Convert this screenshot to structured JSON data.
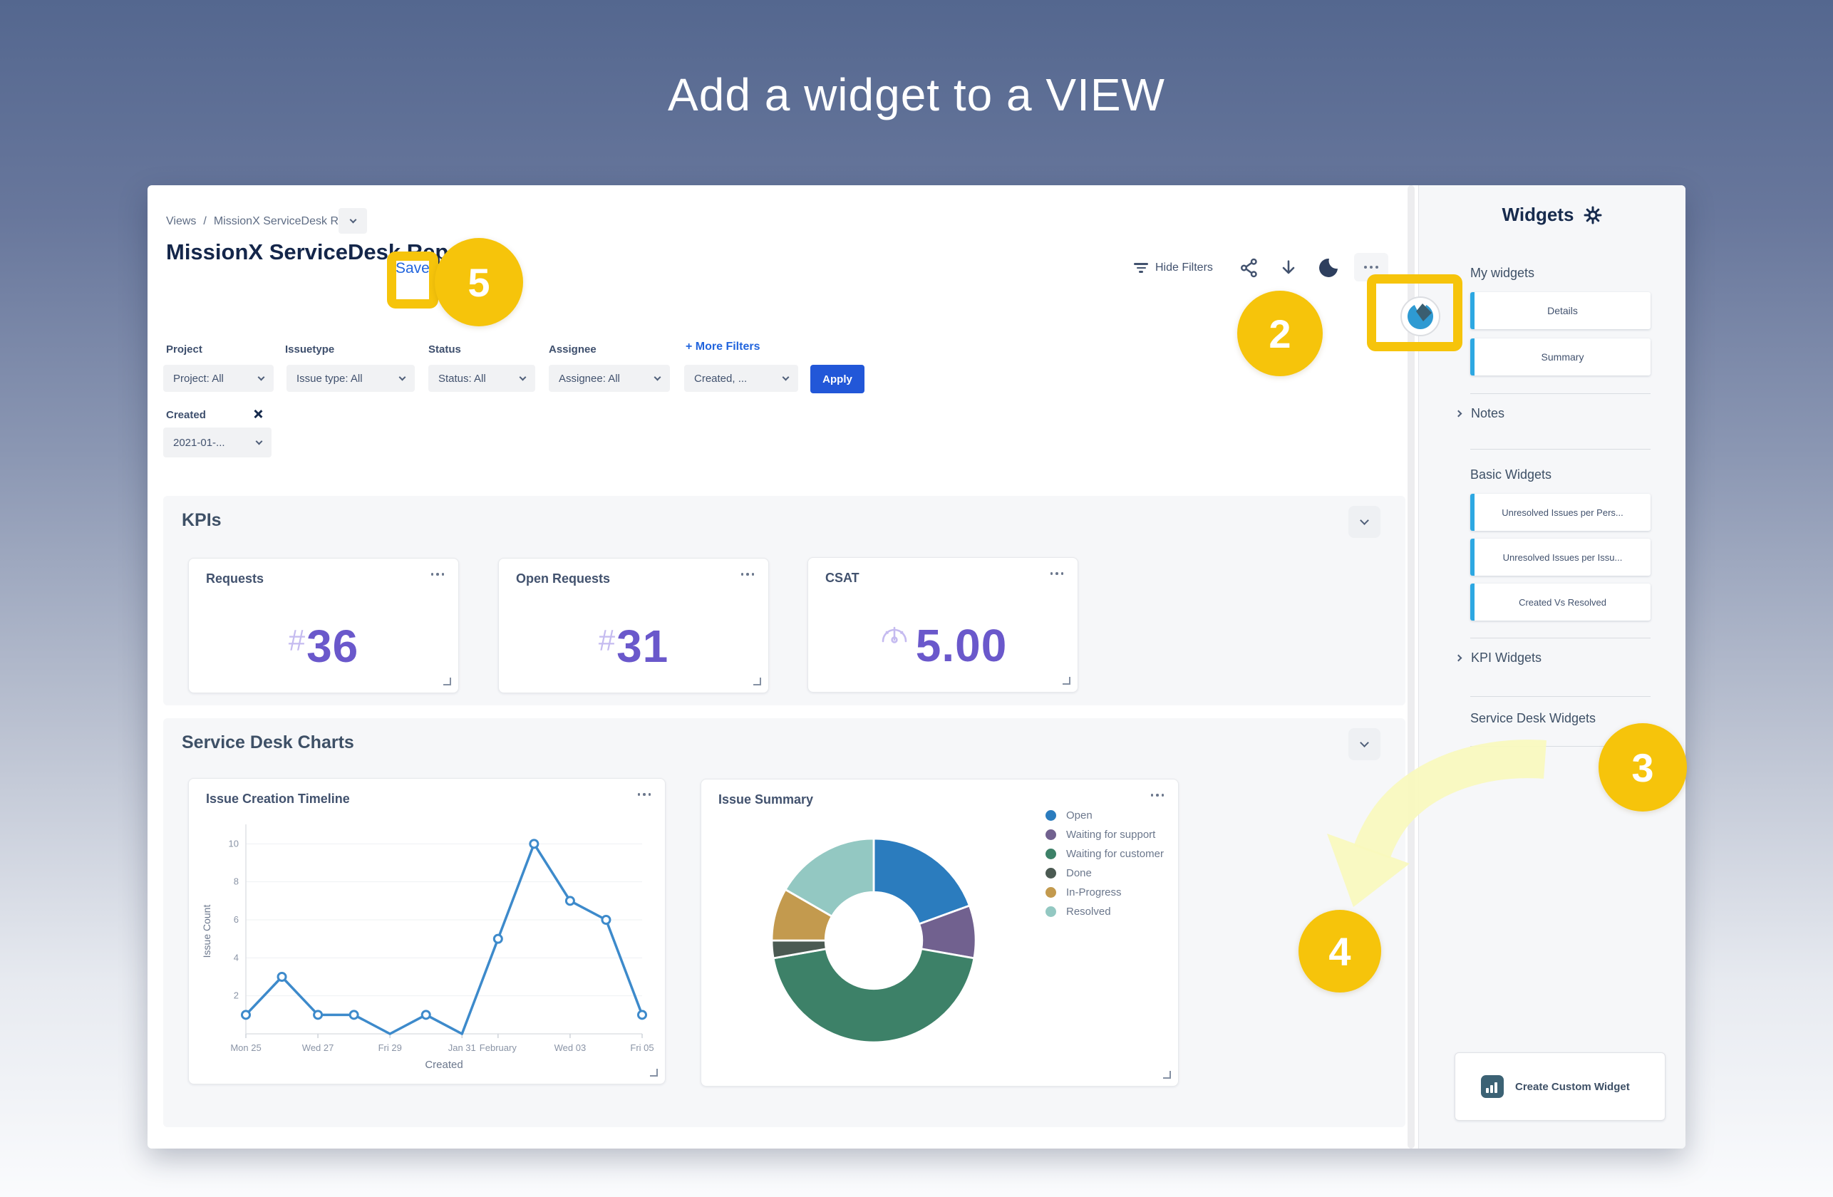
{
  "page_title": "Add a widget to a VIEW",
  "steps": {
    "two": "2",
    "three": "3",
    "four": "4",
    "five": "5"
  },
  "breadcrumb": {
    "root": "Views",
    "separator": "/",
    "current": "MissionX ServiceDesk Report"
  },
  "header": {
    "title": "MissionX ServiceDesk Report",
    "save_label": "Save",
    "hide_filters": "Hide Filters"
  },
  "filters": {
    "fields": [
      {
        "label": "Project",
        "value": "Project: All"
      },
      {
        "label": "Issuetype",
        "value": "Issue type: All"
      },
      {
        "label": "Status",
        "value": "Status: All"
      },
      {
        "label": "Assignee",
        "value": "Assignee: All"
      }
    ],
    "more_filters": "+ More Filters",
    "created_dropdown": "Created, ...",
    "apply": "Apply",
    "created_chip": {
      "label": "Created",
      "value": "2021-01-..."
    }
  },
  "kpi_section": {
    "title": "KPIs",
    "cards": [
      {
        "title": "Requests",
        "prefix": "#",
        "value": "36"
      },
      {
        "title": "Open Requests",
        "prefix": "#",
        "value": "31"
      },
      {
        "title": "CSAT",
        "icon": "gauge-icon",
        "value": "5.00"
      }
    ]
  },
  "charts_section": {
    "title": "Service Desk Charts"
  },
  "chart_data": [
    {
      "type": "line",
      "title": "Issue Creation Timeline",
      "xlabel": "Created",
      "ylabel": "Issue Count",
      "x": [
        "Jan 25",
        "Jan 26",
        "Jan 27",
        "Jan 28",
        "Jan 29",
        "Jan 30",
        "Jan 31",
        "Feb 01",
        "Feb 02",
        "Feb 03",
        "Feb 04",
        "Feb 05"
      ],
      "values": [
        1,
        3,
        1,
        1,
        0,
        1,
        0,
        5,
        10,
        7,
        6,
        1
      ],
      "x_ticks": [
        "Mon 25",
        "Wed 27",
        "Fri 29",
        "Jan 31",
        "February",
        "Wed 03",
        "Fri 05"
      ],
      "tick_indices": [
        0,
        2,
        4,
        6,
        7,
        9,
        11
      ],
      "y_ticks": [
        2,
        4,
        6,
        8,
        10
      ],
      "ylim": [
        0,
        10.8
      ],
      "grid": true,
      "line_color": "#3d8acb"
    },
    {
      "type": "pie",
      "donut": true,
      "title": "Issue Summary",
      "labels": [
        "Open",
        "Waiting for support",
        "Waiting for customer",
        "Done",
        "In-Progress",
        "Resolved"
      ],
      "values": [
        7,
        3,
        16,
        1,
        3,
        6
      ],
      "colors": [
        "#2b7cbe",
        "#71618f",
        "#3d8168",
        "#4b5a52",
        "#c39a4e",
        "#93c8c2"
      ],
      "legend_position": "right"
    }
  ],
  "sidebar": {
    "title": "Widgets",
    "my_widgets": {
      "heading": "My widgets",
      "items": [
        "Details",
        "Summary"
      ]
    },
    "notes": "Notes",
    "basic": {
      "heading": "Basic Widgets",
      "items": [
        "Unresolved Issues per Pers...",
        "Unresolved Issues per Issu...",
        "Created Vs Resolved"
      ]
    },
    "kpi_widgets": "KPI Widgets",
    "service_desk": "Service Desk Widgets",
    "create_custom": "Create Custom Widget"
  },
  "icons": {
    "filter": "filter-icon",
    "share": "share-icon",
    "download": "download-icon",
    "dark_mode": "moon-icon",
    "more": "more-icon",
    "settings": "gear-icon",
    "gauge": "gauge-icon",
    "logo": "pie-logo-icon",
    "chart": "bar-chart-icon"
  },
  "colors": {
    "annotation_yellow": "#f6c40b",
    "arrow_yellow": "#f8f9bd",
    "kpi_purple": "#6a58cb",
    "link_blue": "#2265dd",
    "apply_blue": "#2257d8",
    "widget_accent": "#2da8e2",
    "line_blue": "#3d8acb"
  }
}
